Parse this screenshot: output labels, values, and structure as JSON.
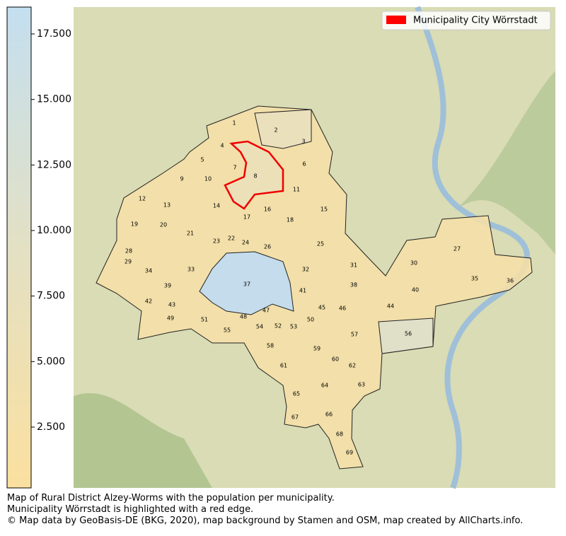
{
  "legend": {
    "label": "Municipality City Wörrstadt"
  },
  "colorbar": {
    "lim": [
      180,
      18525
    ],
    "ticks": [
      {
        "value": 2500,
        "label": "2.500"
      },
      {
        "value": 5000,
        "label": "5.000"
      },
      {
        "value": 7500,
        "label": "7.500"
      },
      {
        "value": 10000,
        "label": "10.000"
      },
      {
        "value": 12500,
        "label": "12.500"
      },
      {
        "value": 15000,
        "label": "15.000"
      },
      {
        "value": 17500,
        "label": "17.500"
      }
    ]
  },
  "municipalities": [
    "1",
    "2",
    "3",
    "4",
    "5",
    "6",
    "7",
    "8",
    "9",
    "10",
    "11",
    "12",
    "13",
    "14",
    "15",
    "16",
    "17",
    "18",
    "19",
    "20",
    "21",
    "22",
    "23",
    "24",
    "25",
    "26",
    "27",
    "28",
    "29",
    "30",
    "31",
    "32",
    "33",
    "34",
    "35",
    "36",
    "37",
    "38",
    "39",
    "40",
    "41",
    "42",
    "43",
    "44",
    "45",
    "46",
    "47",
    "48",
    "49",
    "50",
    "51",
    "52",
    "53",
    "54",
    "55",
    "56",
    "57",
    "58",
    "59",
    "60",
    "61",
    "62",
    "63",
    "64",
    "65",
    "66",
    "67",
    "68",
    "69"
  ],
  "caption": [
    "Map of Rural District Alzey-Worms with the population per municipality.",
    "Municipality Wörrstadt is highlighted with a red edge.",
    "© Map data by GeoBasis-DE (BKG, 2020), map background by Stamen and OSM, map created by AllCharts.info."
  ]
}
